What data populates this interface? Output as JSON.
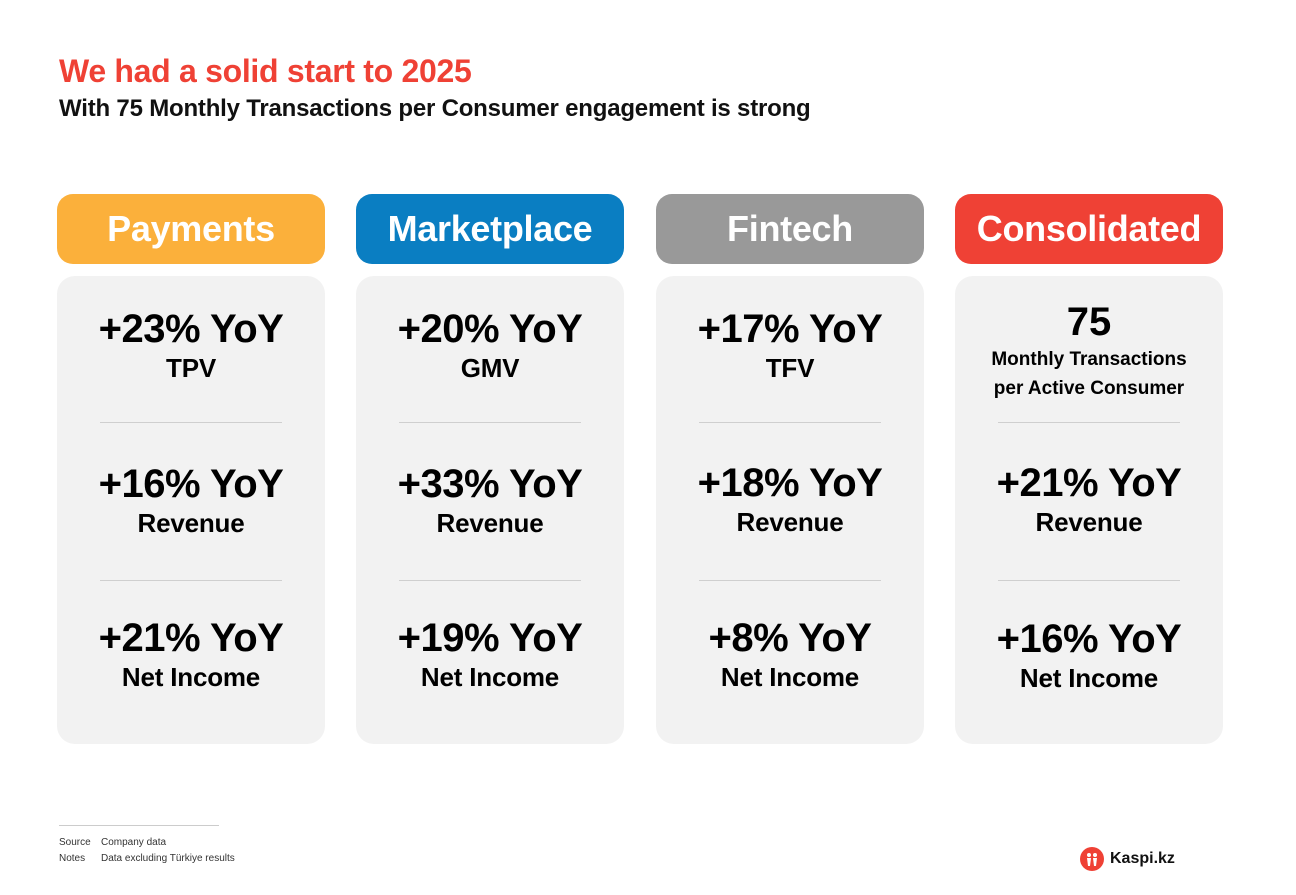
{
  "title": "We had a solid start to 2025",
  "subtitle": "With 75 Monthly Transactions per Consumer engagement is strong",
  "colors": {
    "payments": "#fbb03b",
    "marketplace": "#0a7ec2",
    "fintech": "#999999",
    "consolidated": "#ef4135"
  },
  "columns": [
    {
      "header": "Payments",
      "metrics": [
        {
          "value": "+23% YoY",
          "label": "TPV"
        },
        {
          "value": "+16% YoY",
          "label": "Revenue"
        },
        {
          "value": "+21% YoY",
          "label": "Net Income"
        }
      ]
    },
    {
      "header": "Marketplace",
      "metrics": [
        {
          "value": "+20% YoY",
          "label": "GMV"
        },
        {
          "value": "+33% YoY",
          "label": "Revenue"
        },
        {
          "value": "+19% YoY",
          "label": "Net Income"
        }
      ]
    },
    {
      "header": "Fintech",
      "metrics": [
        {
          "value": "+17% YoY",
          "label": "TFV"
        },
        {
          "value": "+18% YoY",
          "label": "Revenue"
        },
        {
          "value": "+8% YoY",
          "label": "Net Income"
        }
      ]
    },
    {
      "header": "Consolidated",
      "first": {
        "number": "75",
        "line1": "Monthly Transactions",
        "line2": "per Active Consumer"
      },
      "metrics": [
        {
          "value": "+21% YoY",
          "label": "Revenue"
        },
        {
          "value": "+16% YoY",
          "label": "Net Income"
        }
      ]
    }
  ],
  "footer": {
    "source_key": "Source",
    "source_value": "Company data",
    "notes_key": "Notes",
    "notes_value": "Data excluding Türkiye results"
  },
  "logo": {
    "text": "Kaspi.kz",
    "icon": "kaspi-logo-icon"
  }
}
